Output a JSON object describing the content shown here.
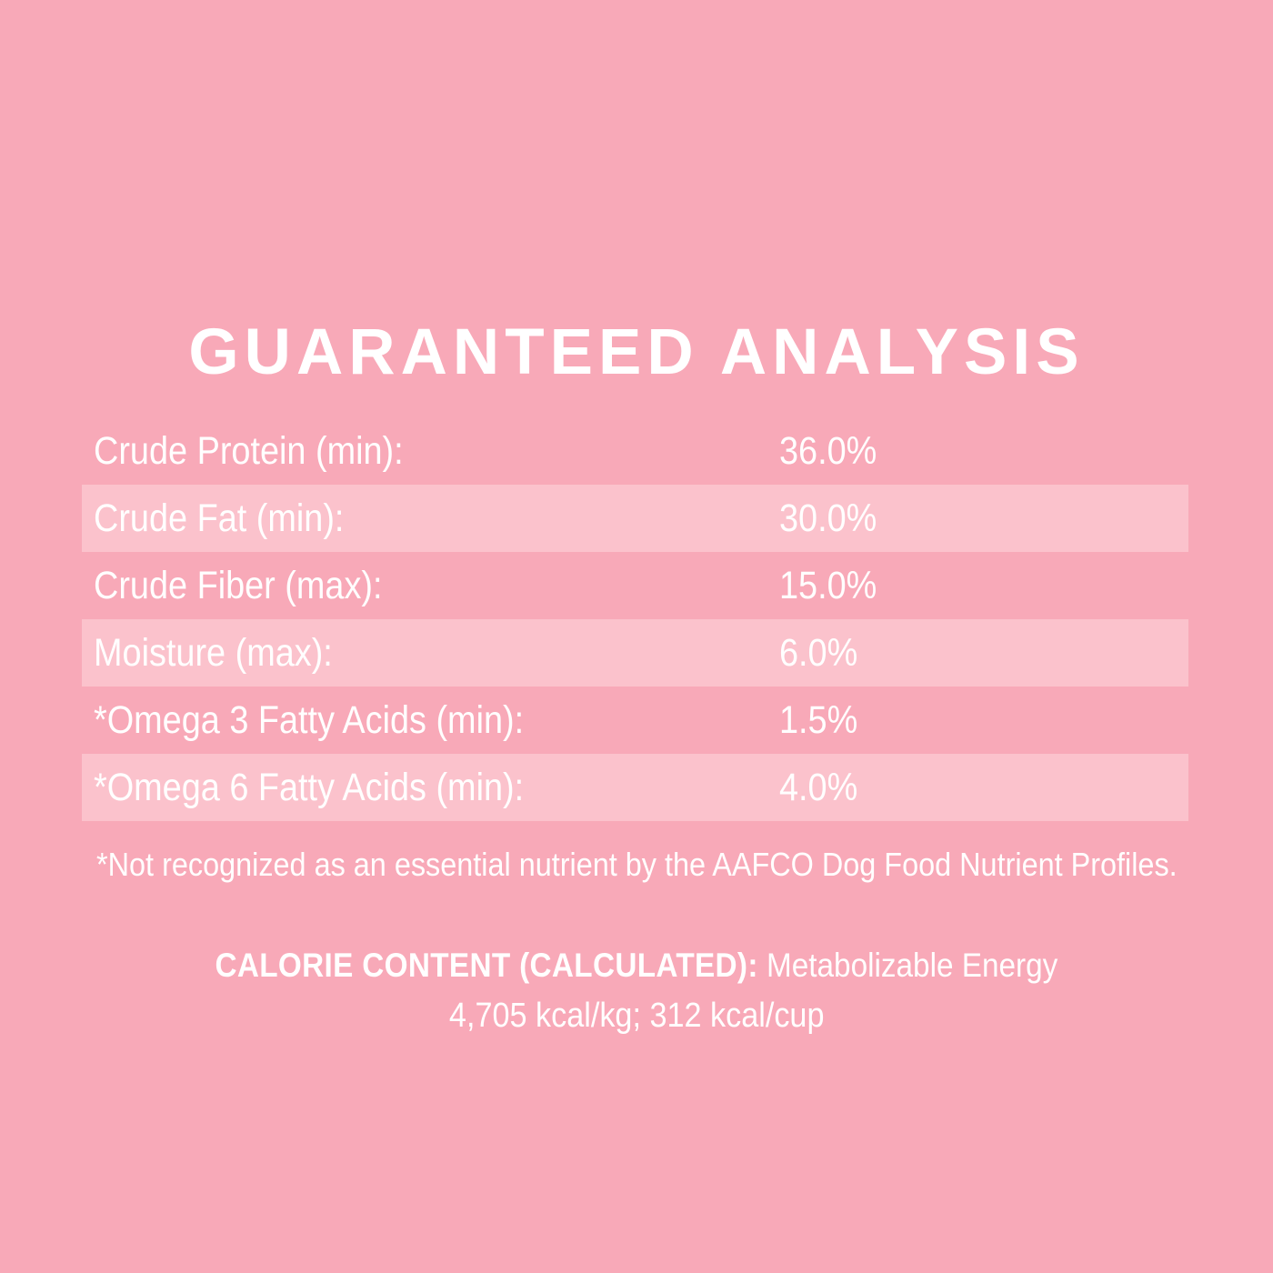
{
  "colors": {
    "background": "#f8a9b8",
    "row_stripe": "#fbc2cc",
    "text": "#ffffff"
  },
  "title": "GUARANTEED ANALYSIS",
  "table": {
    "rows": [
      {
        "label": "Crude Protein (min):",
        "value": "36.0%",
        "striped": false
      },
      {
        "label": "Crude Fat (min):",
        "value": "30.0%",
        "striped": true
      },
      {
        "label": "Crude Fiber (max):",
        "value": "15.0%",
        "striped": false
      },
      {
        "label": "Moisture (max):",
        "value": "6.0%",
        "striped": true
      },
      {
        "label": "*Omega 3 Fatty Acids (min):",
        "value": "1.5%",
        "striped": false
      },
      {
        "label": "*Omega 6 Fatty Acids (min):",
        "value": "4.0%",
        "striped": true
      }
    ]
  },
  "footnote": "*Not recognized as an essential nutrient by the AAFCO Dog Food Nutrient Profiles.",
  "calorie": {
    "heading": "CALORIE CONTENT (CALCULATED):",
    "subtitle": "Metabolizable Energy",
    "values": "4,705 kcal/kg; 312 kcal/cup"
  }
}
